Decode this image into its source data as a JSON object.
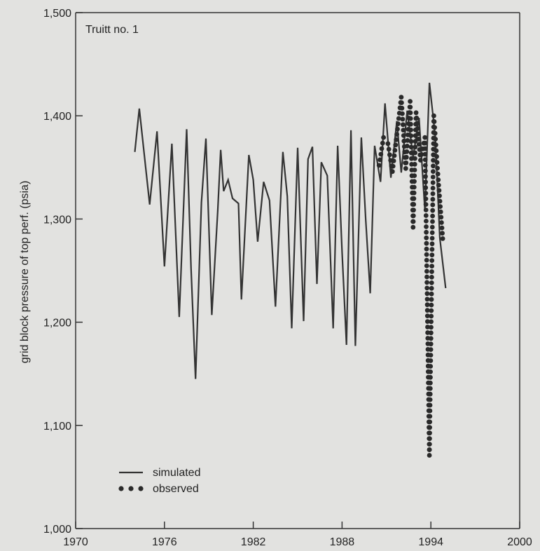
{
  "chart_data": {
    "type": "line",
    "annotation": "Truitt no. 1",
    "ylabel": "grid block pressure of top perf. (psia)",
    "xlabel": "",
    "xlim": [
      1970,
      2000
    ],
    "ylim": [
      1000,
      1500
    ],
    "x_ticks": [
      1970,
      1976,
      1982,
      1988,
      1994,
      2000
    ],
    "x_tick_labels": [
      "1970",
      "1976",
      "1982",
      "1988",
      "1994",
      "2000"
    ],
    "y_ticks": [
      1000,
      1100,
      1200,
      1300,
      1400,
      1500
    ],
    "y_tick_labels": [
      "1,000",
      "1,100",
      "1,200",
      "1,300",
      "1,400",
      "1,500"
    ],
    "legend": [
      {
        "label": "simulated",
        "style": "line"
      },
      {
        "label": "observed",
        "style": "dots"
      }
    ],
    "legend_position": "bottom-left",
    "grid": false,
    "colors": {
      "line": "#333333",
      "dots": "#2a2a2a",
      "background": "#e2e2e0"
    },
    "series": [
      {
        "name": "simulated",
        "style": "line",
        "x": [
          1974.0,
          1974.3,
          1975.0,
          1975.5,
          1976.0,
          1976.5,
          1977.0,
          1977.5,
          1977.8,
          1978.1,
          1978.5,
          1978.8,
          1979.2,
          1979.6,
          1979.8,
          1980.0,
          1980.3,
          1980.6,
          1981.0,
          1981.2,
          1981.7,
          1982.0,
          1982.3,
          1982.7,
          1983.1,
          1983.5,
          1984.0,
          1984.3,
          1984.6,
          1985.0,
          1985.4,
          1985.7,
          1986.0,
          1986.3,
          1986.6,
          1987.0,
          1987.4,
          1987.7,
          1988.0,
          1988.3,
          1988.6,
          1988.9,
          1989.3,
          1989.6,
          1989.9,
          1990.2,
          1990.6,
          1990.9,
          1991.3,
          1991.7,
          1992.0,
          1992.4,
          1992.8,
          1993.2,
          1993.6,
          1993.9,
          1994.3,
          1994.6,
          1995.0
        ],
        "y": [
          1365,
          1407,
          1314,
          1385,
          1254,
          1373,
          1205,
          1387,
          1252,
          1145,
          1316,
          1378,
          1207,
          1308,
          1367,
          1327,
          1338,
          1320,
          1315,
          1222,
          1362,
          1338,
          1278,
          1336,
          1318,
          1215,
          1365,
          1322,
          1194,
          1369,
          1201,
          1358,
          1370,
          1237,
          1355,
          1342,
          1194,
          1371,
          1268,
          1178,
          1386,
          1177,
          1379,
          1299,
          1228,
          1371,
          1336,
          1412,
          1340,
          1395,
          1345,
          1405,
          1360,
          1398,
          1308,
          1432,
          1380,
          1282,
          1233
        ]
      },
      {
        "name": "observed",
        "style": "dots",
        "x": [
          1990.5,
          1990.8,
          1991.1,
          1991.4,
          1991.7,
          1992.0,
          1992.3,
          1992.6,
          1992.8,
          1993.0,
          1993.3,
          1993.6,
          1993.9,
          1994.2,
          1994.5,
          1994.8
        ],
        "y": [
          1352,
          1379,
          1373,
          1346,
          1382,
          1418,
          1349,
          1414,
          1292,
          1403,
          1357,
          1379,
          1071,
          1400,
          1338,
          1281
        ]
      }
    ]
  }
}
